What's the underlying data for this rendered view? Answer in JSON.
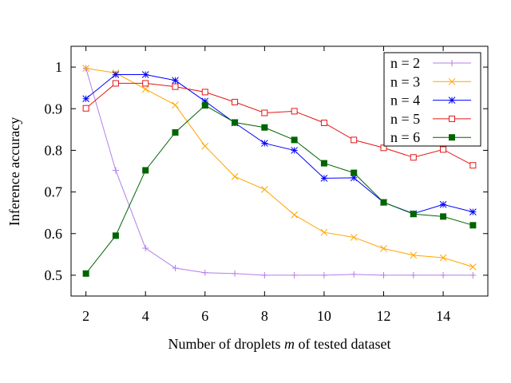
{
  "chart_data": {
    "type": "line",
    "x": [
      2,
      3,
      4,
      5,
      6,
      7,
      8,
      9,
      10,
      11,
      12,
      13,
      14,
      15
    ],
    "xlim": [
      1.5,
      15.5
    ],
    "ylim": [
      0.45,
      1.05
    ],
    "xticks": [
      2,
      4,
      6,
      8,
      10,
      12,
      14
    ],
    "yticks": [
      0.5,
      0.6,
      0.7,
      0.8,
      0.9,
      1
    ],
    "xlabel_prefix": "Number of droplets ",
    "xlabel_var": "m",
    "xlabel_suffix": " of tested dataset",
    "ylabel": "Inference accuracy",
    "grid": false,
    "legend_position": "top-right",
    "series": [
      {
        "name": "n = 2",
        "color": "#b57de8",
        "marker": "plus",
        "values": [
          0.997,
          0.752,
          0.565,
          0.517,
          0.506,
          0.504,
          0.5,
          0.5,
          0.5,
          0.502,
          0.5,
          0.5,
          0.5,
          0.5
        ]
      },
      {
        "name": "n = 3",
        "color": "#ffa500",
        "marker": "x",
        "values": [
          0.997,
          0.986,
          0.947,
          0.909,
          0.81,
          0.737,
          0.706,
          0.645,
          0.603,
          0.591,
          0.564,
          0.548,
          0.542,
          0.52
        ]
      },
      {
        "name": "n = 4",
        "color": "#0000ff",
        "marker": "star",
        "values": [
          0.924,
          0.982,
          0.982,
          0.968,
          0.918,
          0.866,
          0.817,
          0.8,
          0.733,
          0.734,
          0.675,
          0.648,
          0.67,
          0.652
        ]
      },
      {
        "name": "n = 5",
        "color": "#e51616",
        "marker": "open-square",
        "values": [
          0.901,
          0.961,
          0.961,
          0.953,
          0.94,
          0.916,
          0.89,
          0.894,
          0.866,
          0.825,
          0.806,
          0.783,
          0.802,
          0.764
        ]
      },
      {
        "name": "n = 6",
        "color": "#006400",
        "marker": "filled-square",
        "values": [
          0.504,
          0.595,
          0.752,
          0.843,
          0.908,
          0.867,
          0.855,
          0.825,
          0.769,
          0.746,
          0.675,
          0.647,
          0.641,
          0.62
        ]
      }
    ]
  }
}
